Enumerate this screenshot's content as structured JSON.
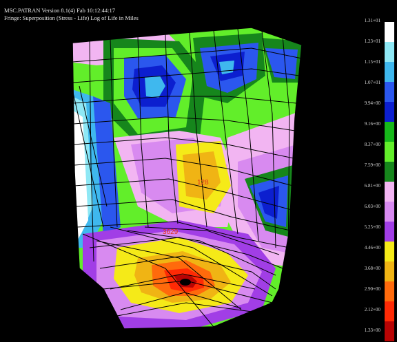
{
  "header": {
    "line1": "MSC.PATRAN Version 8.1(4) Fab 10:12:44:17",
    "line2": "Fringe: Superposition (Stress - Life) Log of Life in Miles"
  },
  "legend": {
    "labels": [
      "1.31+01",
      "1.23+01",
      "1.15+01",
      "1.07+01",
      "9.94+00",
      "9.16+00",
      "8.37+00",
      "7.59+00",
      "6.81+00",
      "6.03+00",
      "5.25+00",
      "4.46+00",
      "3.68+00",
      "2.90+00",
      "2.12+00",
      "1.33+00"
    ],
    "colors": [
      "#ffffff",
      "#8fe8f5",
      "#3fb8ee",
      "#2b57ee",
      "#0c1fcf",
      "#16b81a",
      "#62ee2a",
      "#16861c",
      "#f2b5f2",
      "#d88af0",
      "#a13ee6",
      "#f5ea18",
      "#f0b414",
      "#ff6a0c",
      "#ff2a05",
      "#b80404"
    ]
  },
  "annotations": {
    "node1": "128",
    "node2": "3629"
  }
}
